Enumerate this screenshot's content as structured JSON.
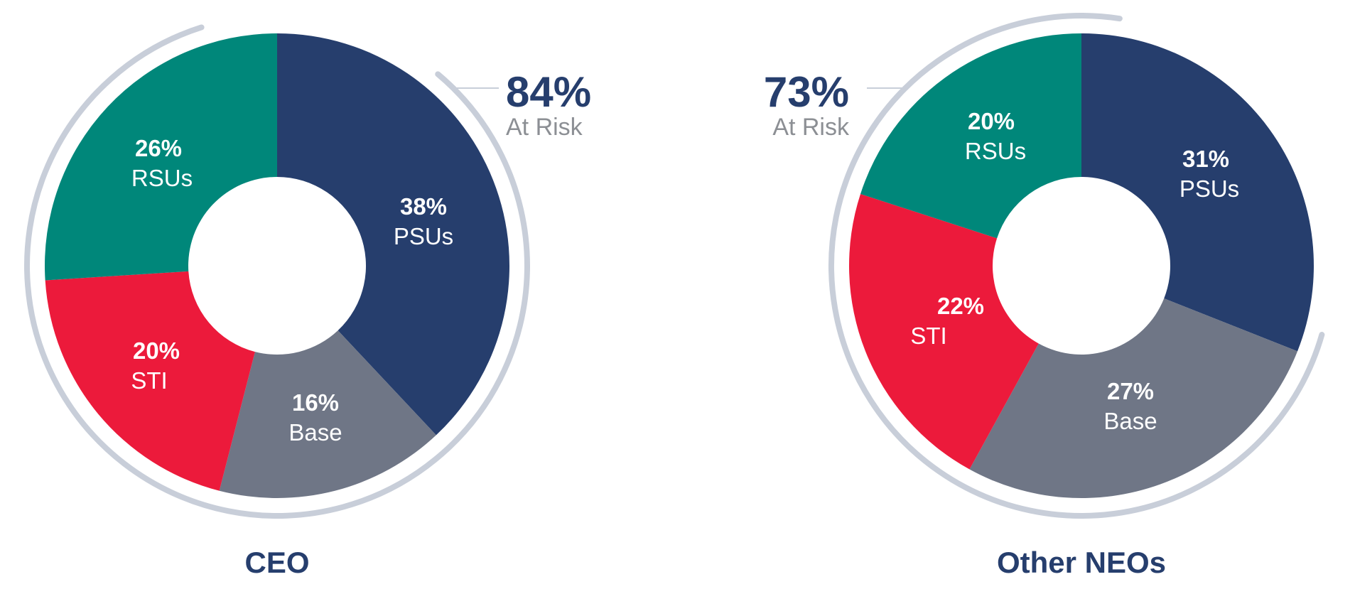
{
  "colors": {
    "PSUs": "#263e6d",
    "Base": "#6f7686",
    "STI": "#ec1a3b",
    "RSUs": "#00877a",
    "arc": "#c8ced9",
    "title": "#263e6d",
    "at_risk_label": "#8c8f94"
  },
  "chart_data": [
    {
      "type": "pie",
      "title": "CEO",
      "at_risk": {
        "value": "84%",
        "label": "At Risk"
      },
      "slices": [
        {
          "key": "PSUs",
          "pct": "38%",
          "label": "PSUs",
          "value": 38
        },
        {
          "key": "Base",
          "pct": "16%",
          "label": "Base",
          "value": 16
        },
        {
          "key": "STI",
          "pct": "20%",
          "label": "STI",
          "value": 20
        },
        {
          "key": "RSUs",
          "pct": "26%",
          "label": "RSUs",
          "value": 26
        }
      ]
    },
    {
      "type": "pie",
      "title": "Other NEOs",
      "at_risk": {
        "value": "73%",
        "label": "At Risk"
      },
      "slices": [
        {
          "key": "PSUs",
          "pct": "31%",
          "label": "PSUs",
          "value": 31
        },
        {
          "key": "Base",
          "pct": "27%",
          "label": "Base",
          "value": 27
        },
        {
          "key": "STI",
          "pct": "22%",
          "label": "STI",
          "value": 22
        },
        {
          "key": "RSUs",
          "pct": "20%",
          "label": "RSUs",
          "value": 20
        }
      ]
    }
  ]
}
